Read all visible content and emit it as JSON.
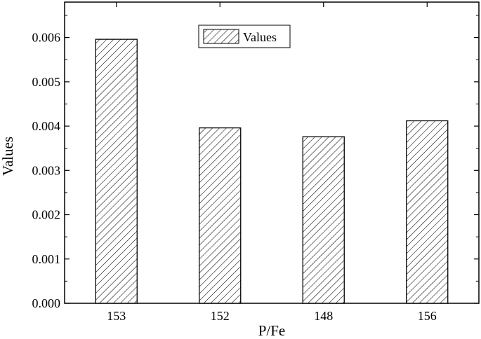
{
  "chart_data": {
    "type": "bar",
    "categories": [
      "153",
      "152",
      "148",
      "156"
    ],
    "series": [
      {
        "name": "Values",
        "values": [
          0.00596,
          0.00396,
          0.00376,
          0.00412
        ]
      }
    ],
    "xlabel": "P/Fe",
    "ylabel": "Values",
    "ylim": [
      0,
      0.0068
    ],
    "yticks": [
      "0.000",
      "0.001",
      "0.002",
      "0.003",
      "0.004",
      "0.005",
      "0.006"
    ],
    "grid": false,
    "legend": {
      "position": "top-center",
      "entries": [
        "Values"
      ]
    },
    "bar_fill": "diagonal-hatch",
    "colors": {
      "bar_stroke": "#000000",
      "hatch": "#000000",
      "background": "#ffffff"
    }
  }
}
